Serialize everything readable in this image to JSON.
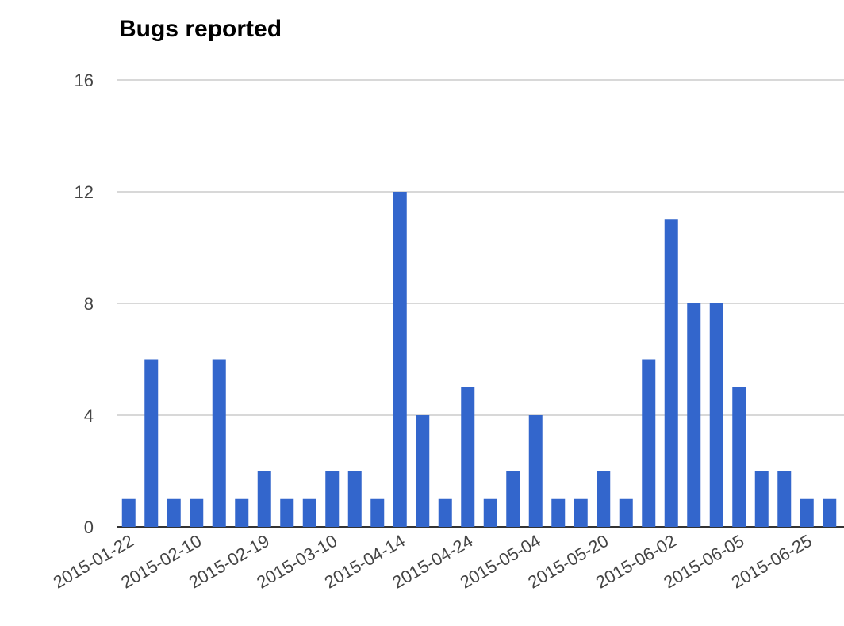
{
  "chart_data": {
    "type": "bar",
    "title": "Bugs reported",
    "categories": [
      "2015-01-22",
      null,
      null,
      "2015-02-10",
      null,
      null,
      "2015-02-19",
      null,
      null,
      "2015-03-10",
      null,
      null,
      "2015-04-14",
      null,
      null,
      "2015-04-24",
      null,
      null,
      "2015-05-04",
      null,
      null,
      "2015-05-20",
      null,
      null,
      "2015-06-02",
      null,
      null,
      "2015-06-05",
      null,
      null,
      "2015-06-25",
      null
    ],
    "values": [
      1,
      6,
      1,
      1,
      6,
      1,
      2,
      1,
      1,
      2,
      2,
      1,
      12,
      4,
      1,
      5,
      1,
      2,
      4,
      1,
      1,
      2,
      1,
      6,
      11,
      8,
      8,
      5,
      2,
      2,
      1,
      1
    ],
    "color": "#3366cc",
    "ylim": [
      0,
      16
    ],
    "yticks": [
      0,
      4,
      8,
      12,
      16
    ],
    "grid": true
  }
}
